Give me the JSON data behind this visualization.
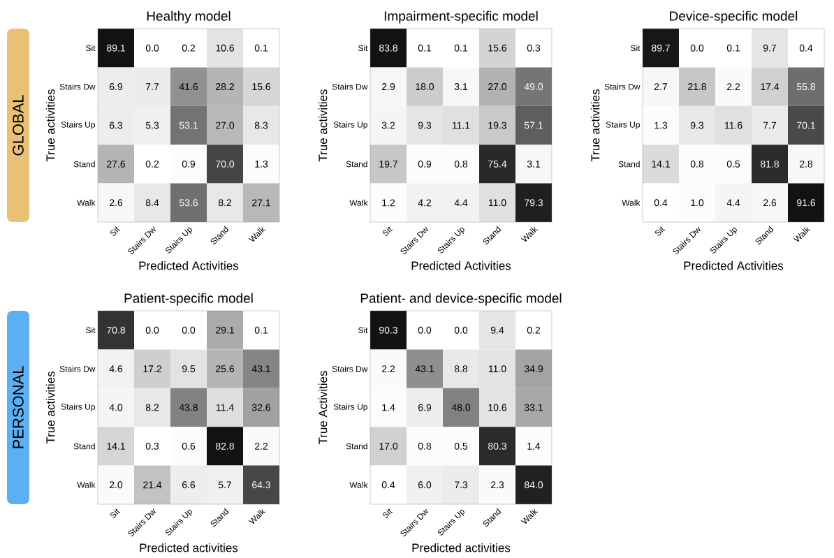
{
  "chart_data": [
    {
      "type": "heatmap",
      "title": "Healthy model",
      "xlabel": "Predicted Activities",
      "ylabel": "True activities",
      "annotations": [
        "GLOBAL"
      ],
      "categories": [
        "Sit",
        "Stairs Dw",
        "Stairs Up",
        "Stand",
        "Walk"
      ],
      "y_categories": [
        "Sit",
        "Stairs Dw",
        "Stairs Up",
        "Stand",
        "Walk"
      ],
      "cells": [
        [
          89.1,
          0.0,
          0.2,
          10.6,
          0.1
        ],
        [
          6.9,
          7.7,
          41.6,
          28.2,
          15.6
        ],
        [
          6.3,
          5.3,
          53.1,
          27.0,
          8.3
        ],
        [
          27.6,
          0.2,
          0.9,
          70.0,
          1.3
        ],
        [
          2.6,
          8.4,
          53.6,
          8.2,
          27.1
        ]
      ],
      "cell_labels": [
        [
          "89.1",
          "0.0",
          "0.2",
          "10.6",
          "0.1"
        ],
        [
          "6.9",
          "7.7",
          "41.6",
          "28.2",
          "15.6"
        ],
        [
          "6.3",
          "5.3",
          "53.1",
          "27.0",
          "8.3"
        ],
        [
          "27.6",
          "0.2",
          "0.9",
          "70.0",
          "1.3"
        ],
        [
          "2.6",
          "8.4",
          "53.6",
          "8.2",
          "27.1"
        ]
      ]
    },
    {
      "type": "heatmap",
      "title": "Impairment-specific model",
      "xlabel": "Predicted Activities",
      "ylabel": "True activities",
      "categories": [
        "Sit",
        "Stairs Dw",
        "Stairs Up",
        "Stand",
        "Walk"
      ],
      "y_categories": [
        "Sit",
        "Stairs Dw",
        "Stairs Up",
        "Stand",
        "Walk"
      ],
      "cells": [
        [
          83.8,
          0.1,
          0.1,
          15.6,
          0.3
        ],
        [
          2.9,
          18.0,
          3.1,
          27.0,
          49.0
        ],
        [
          3.2,
          9.3,
          11.1,
          19.3,
          57.1
        ],
        [
          19.7,
          0.9,
          0.8,
          75.4,
          3.1
        ],
        [
          1.2,
          4.2,
          4.4,
          11.0,
          79.3
        ]
      ],
      "cell_labels": [
        [
          "83.8",
          "0.1",
          "0.1",
          "15.6",
          "0.3"
        ],
        [
          "2.9",
          "18.0",
          "3.1",
          "27.0",
          "49.0"
        ],
        [
          "3.2",
          "9.3",
          "11.1",
          "19.3",
          "57.1"
        ],
        [
          "19.7",
          "0.9",
          "0.8",
          "75.4",
          "3.1"
        ],
        [
          "1.2",
          "4.2",
          "4.4",
          "11.0",
          "79.3"
        ]
      ]
    },
    {
      "type": "heatmap",
      "title": "Device-specific model",
      "xlabel": "Predicted Activities",
      "ylabel": "True activities",
      "categories": [
        "Sit",
        "Stairs Dw",
        "Stairs Up",
        "Stand",
        "Walk"
      ],
      "y_categories": [
        "Sit",
        "Stairs Dw",
        "Stairs Up",
        "Stand",
        "Walk"
      ],
      "cells": [
        [
          89.7,
          0.0,
          0.1,
          9.7,
          0.4
        ],
        [
          2.7,
          21.8,
          2.2,
          17.4,
          55.8
        ],
        [
          1.3,
          9.3,
          11.6,
          7.7,
          70.1
        ],
        [
          14.1,
          0.8,
          0.5,
          81.8,
          2.8
        ],
        [
          0.4,
          1.0,
          4.4,
          2.6,
          91.6
        ]
      ],
      "cell_labels": [
        [
          "89.7",
          "0.0",
          "0.1",
          "9.7",
          "0.4"
        ],
        [
          "2.7",
          "21.8",
          "2.2",
          "17.4",
          "55.8"
        ],
        [
          "1.3",
          "9.3",
          "11.6",
          "7.7",
          "70.1"
        ],
        [
          "14.1",
          "0.8",
          "0.5",
          "81.8",
          "2.8"
        ],
        [
          "0.4",
          "1.0",
          "4.4",
          "2.6",
          "91.6"
        ]
      ]
    },
    {
      "type": "heatmap",
      "title": "Patient-specific model",
      "xlabel": "Predicted activities",
      "ylabel": "True activities",
      "annotations": [
        "PERSONAL"
      ],
      "categories": [
        "Sit",
        "Stairs Dw",
        "Stairs Up",
        "Stand",
        "Walk"
      ],
      "y_categories": [
        "Sit",
        "Stairs Dw",
        "Stairs Up",
        "Stand",
        "Walk"
      ],
      "cells": [
        [
          70.8,
          0.0,
          0.0,
          29.1,
          0.1
        ],
        [
          4.6,
          17.2,
          9.5,
          25.6,
          43.1
        ],
        [
          4.0,
          8.2,
          43.8,
          11.4,
          32.6
        ],
        [
          14.1,
          0.3,
          0.6,
          82.8,
          2.2
        ],
        [
          2.0,
          21.4,
          6.6,
          5.7,
          64.3
        ]
      ],
      "cell_labels": [
        [
          "70.8",
          "0.0",
          "0.0",
          "29.1",
          "0.1"
        ],
        [
          "4.6",
          "17.2",
          "9.5",
          "25.6",
          "43.1"
        ],
        [
          "4.0",
          "8.2",
          "43.8",
          "11.4",
          "32.6"
        ],
        [
          "14.1",
          "0.3",
          "0.6",
          "82.8",
          "2.2"
        ],
        [
          "2.0",
          "21.4",
          "6.6",
          "5.7",
          "64.3"
        ]
      ]
    },
    {
      "type": "heatmap",
      "title": "Patient- and device-specific model",
      "xlabel": "Predicted activities",
      "ylabel": "True Activities",
      "categories": [
        "Sit",
        "Stairs Dw",
        "Stairs Up",
        "Stand",
        "Walk"
      ],
      "y_categories": [
        "Sit",
        "Stairs Dw",
        "Stairs Up",
        "Stand",
        "Walk"
      ],
      "cells": [
        [
          90.3,
          0.0,
          0.0,
          9.4,
          0.2
        ],
        [
          2.2,
          43.1,
          8.8,
          11.0,
          34.9
        ],
        [
          1.4,
          6.9,
          48.0,
          10.6,
          33.1
        ],
        [
          17.0,
          0.8,
          0.5,
          80.3,
          1.4
        ],
        [
          0.4,
          6.0,
          7.3,
          2.3,
          84.0
        ]
      ],
      "cell_labels": [
        [
          "90.3",
          "0.0",
          "0.0",
          "9.4",
          "0.2"
        ],
        [
          "2.2",
          "43.1",
          "8.8",
          "11.0",
          "34.9"
        ],
        [
          "1.4",
          "6.9",
          "48.0",
          "10.6",
          "33.1"
        ],
        [
          "17.0",
          "0.8",
          "0.5",
          "80.3",
          "1.4"
        ],
        [
          "0.4",
          "6.0",
          "7.3",
          "2.3",
          "84.0"
        ]
      ]
    }
  ]
}
